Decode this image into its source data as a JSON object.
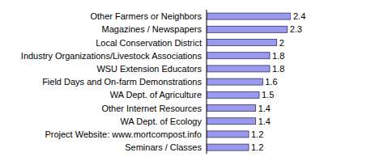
{
  "chart_data": {
    "type": "bar",
    "orientation": "horizontal",
    "categories": [
      "Other Farmers or Neighbors",
      "Magazines / Newspapers",
      "Local Conservation District",
      "Industry Organizations/Livestock Associations",
      "WSU Extension Educators",
      "Field Days and On-farm Demonstrations",
      "WA Dept. of Agriculture",
      "Other Internet Resources",
      "WA Dept. of Ecology",
      "Project Website: www.mortcompost.info",
      "Seminars / Classes"
    ],
    "values": [
      2.4,
      2.3,
      2,
      1.8,
      1.8,
      1.6,
      1.5,
      1.4,
      1.4,
      1.2,
      1.2
    ],
    "color": "#9999ee",
    "xlim": [
      0,
      2.4
    ],
    "data_labels": true,
    "tick_labels": "y",
    "grid": false
  }
}
